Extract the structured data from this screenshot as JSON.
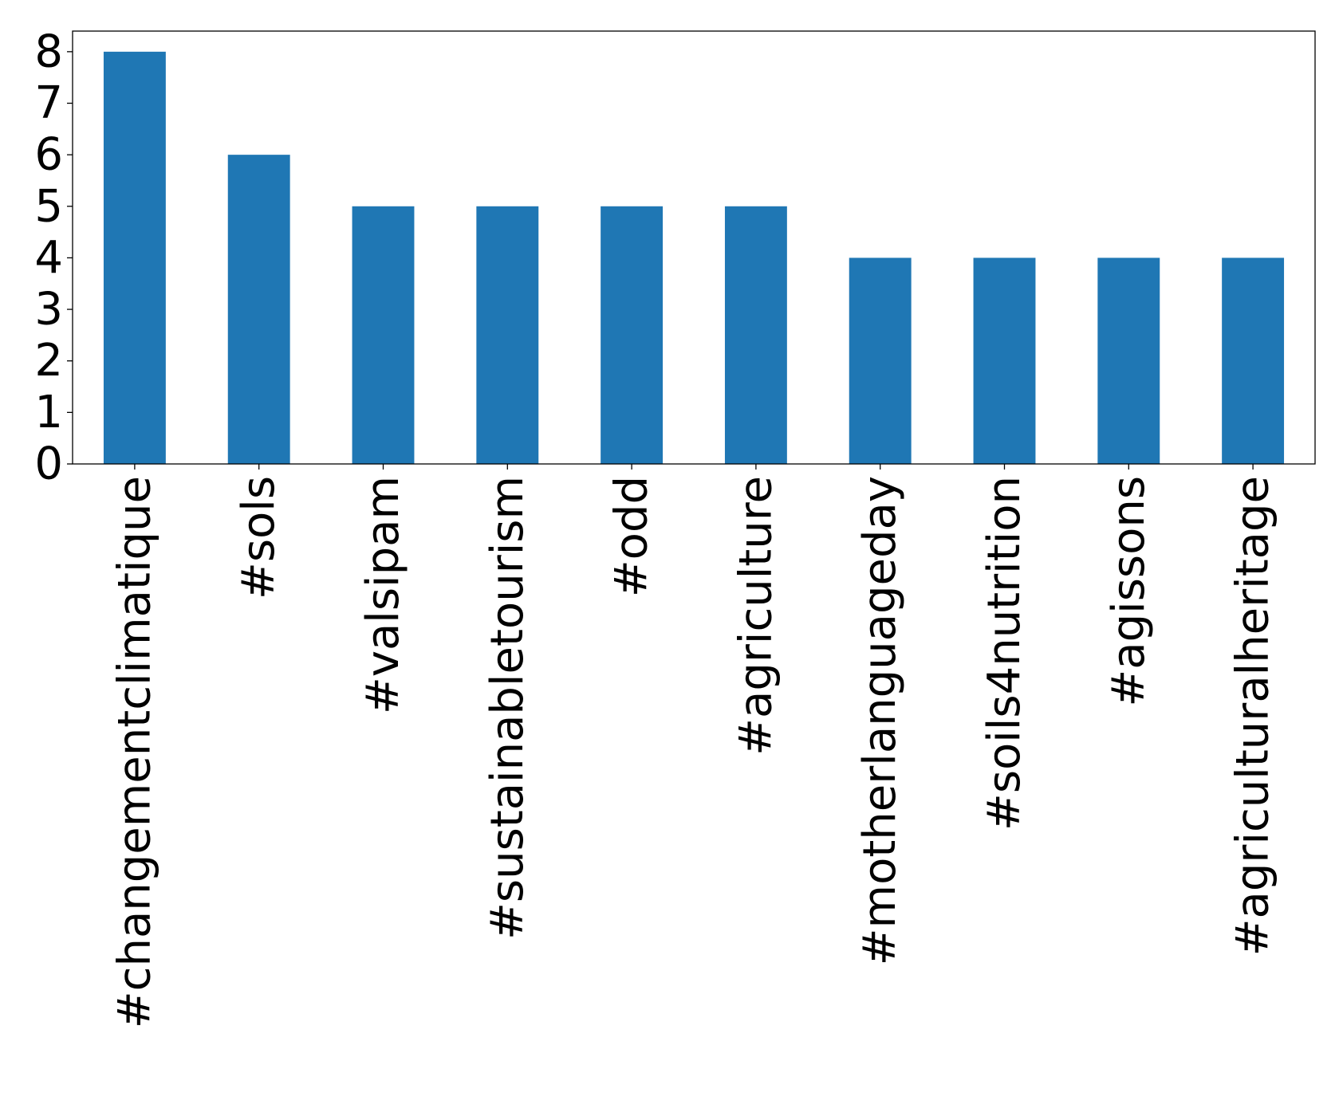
{
  "chart_data": {
    "type": "bar",
    "title": "",
    "xlabel": "",
    "ylabel": "",
    "categories": [
      "#changementclimatique",
      "#sols",
      "#valsipam",
      "#sustainabletourism",
      "#odd",
      "#agriculture",
      "#motherlanguageday",
      "#soils4nutrition",
      "#agissons",
      "#agriculturalheritage"
    ],
    "values": [
      8,
      6,
      5,
      5,
      5,
      5,
      4,
      4,
      4,
      4
    ],
    "ylim": [
      0,
      8.4
    ],
    "yticks": [
      "0",
      "1",
      "2",
      "3",
      "4",
      "5",
      "6",
      "7",
      "8"
    ],
    "bar_color": "#1f77b4",
    "grid": false,
    "legend": "none"
  }
}
